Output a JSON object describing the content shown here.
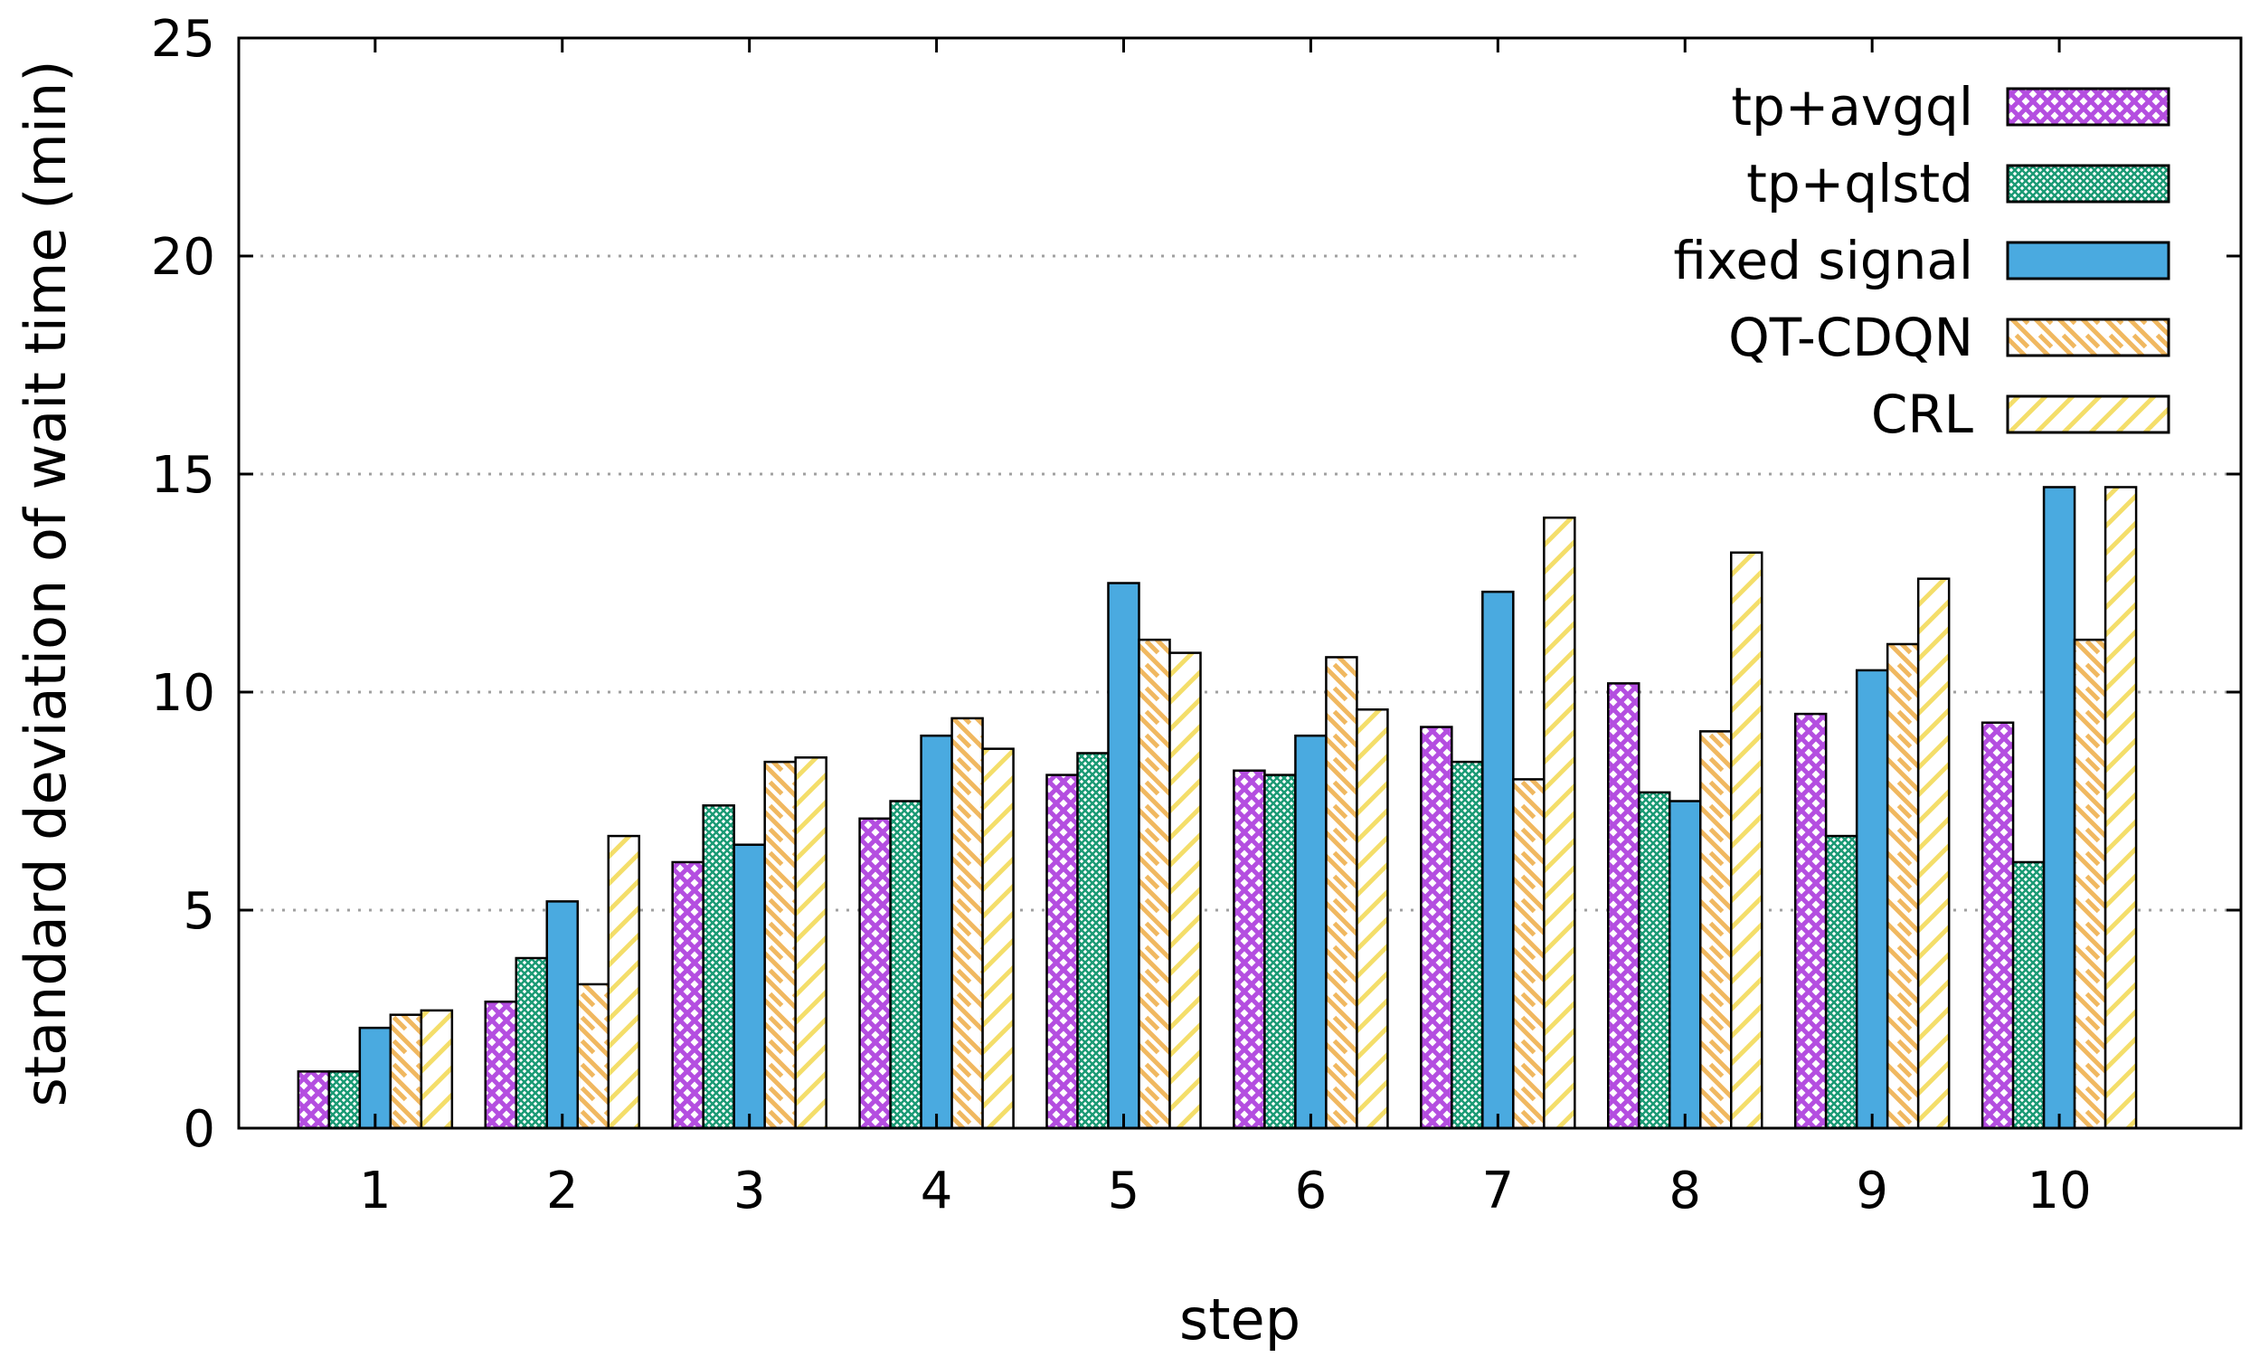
{
  "chart_data": {
    "type": "bar",
    "title": "",
    "xlabel": "step",
    "ylabel": "standard deviation of wait time (min)",
    "ylim": [
      0,
      25
    ],
    "yticks": [
      "0",
      "5",
      "10",
      "15",
      "20",
      "25"
    ],
    "categories": [
      "1",
      "2",
      "3",
      "4",
      "5",
      "6",
      "7",
      "8",
      "9",
      "10"
    ],
    "grid": "horizontal dotted",
    "legend_position": "top-right",
    "series": [
      {
        "name": "tp+avgql",
        "color": "#b44ee0",
        "pattern": "crosshatch",
        "values": [
          1.3,
          2.9,
          6.1,
          7.1,
          8.1,
          8.2,
          9.2,
          10.2,
          9.5,
          9.3
        ]
      },
      {
        "name": "tp+qlstd",
        "color": "#1a9a74",
        "pattern": "fine-grid",
        "values": [
          1.3,
          3.9,
          7.4,
          7.5,
          8.6,
          8.1,
          8.4,
          7.7,
          6.7,
          6.1
        ]
      },
      {
        "name": "fixed signal",
        "color": "#4aaae0",
        "pattern": "solid",
        "values": [
          2.3,
          5.2,
          6.5,
          9.0,
          12.5,
          9.0,
          12.3,
          7.5,
          10.5,
          14.7
        ]
      },
      {
        "name": "QT-CDQN",
        "color": "#f0b860",
        "pattern": "diagonal",
        "values": [
          2.6,
          3.3,
          8.4,
          9.4,
          11.2,
          10.8,
          8.0,
          9.1,
          11.1,
          11.2
        ]
      },
      {
        "name": "CRL",
        "color": "#f4de6a",
        "pattern": "diagonal",
        "values": [
          2.7,
          6.7,
          8.5,
          8.7,
          10.9,
          9.6,
          14.0,
          13.2,
          12.6,
          14.7
        ]
      }
    ]
  }
}
